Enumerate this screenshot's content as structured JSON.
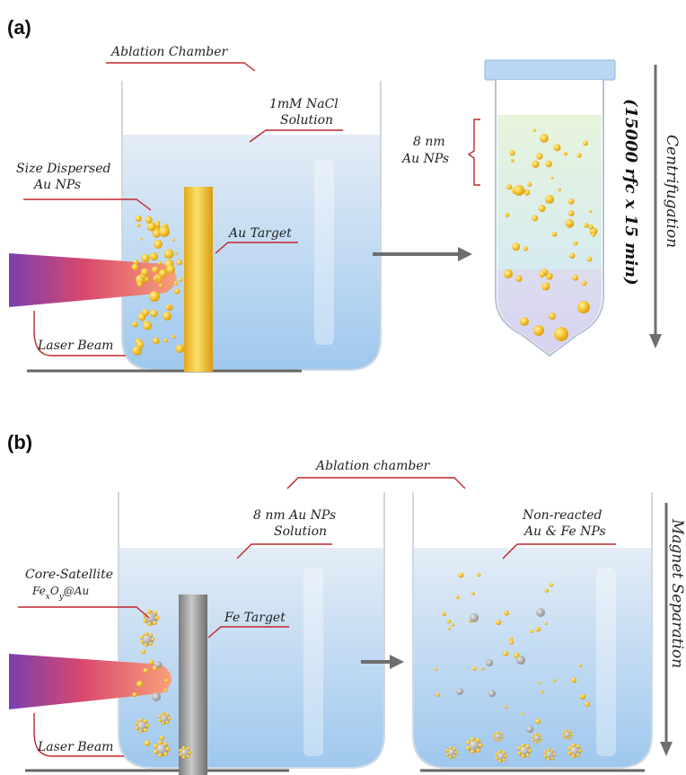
{
  "panel_a": {
    "letter": "(a)",
    "chamber_label": "Ablation Chamber",
    "solution_label_line1": "1mM NaCl",
    "solution_label_line2": "Solution",
    "np_label_line1": "Size Dispersed",
    "np_label_line2": "Au NPs",
    "target_label": "Au Target",
    "laser_label": "Laser Beam",
    "tube_label_line1": "8 nm",
    "tube_label_line2": "Au NPs",
    "process_label": "Centrifugation",
    "process_params": "(15000 rfc x 15 min)"
  },
  "panel_b": {
    "letter": "(b)",
    "chamber_label": "Ablation chamber",
    "solution_label_line1": "8 nm Au NPs",
    "solution_label_line2": "Solution",
    "np_label_line1": "Core-Satellite",
    "np_label_line2": "FexOy@Au",
    "target_label": "Fe Target",
    "laser_label": "Laser Beam",
    "unreacted_label_line1": "Non-reacted",
    "unreacted_label_line2": "Au & Fe NPs",
    "process_label": "Magnet Separation"
  },
  "colors": {
    "water_top": "#dde8f3",
    "water_bottom": "#a8cdee",
    "gold": "#f2c12e",
    "iron": "#9a9a9a",
    "laser_start": "#7a3fb0",
    "laser_end": "#f79a78",
    "accent_line": "#c0262d"
  }
}
